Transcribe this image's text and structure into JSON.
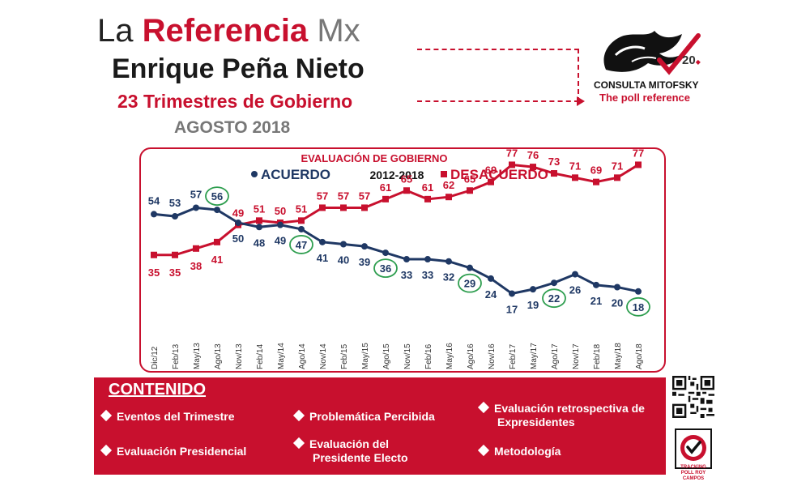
{
  "header": {
    "brand_la": "La",
    "brand_ref": "Referencia",
    "brand_mx": "Mx",
    "headline": "Enrique Peña Nieto",
    "subheadline": "23 Trimestres de Gobierno",
    "date": "AGOSTO 2018"
  },
  "logo": {
    "name": "CONSULTA MITOFSKY",
    "tagline": "The poll reference",
    "years": "20"
  },
  "colors": {
    "acuerdo": "#1f3864",
    "desacuerdo": "#c8102e",
    "highlight": "#2e9e4f"
  },
  "chart_data": {
    "type": "line",
    "title": "EVALUACIÓN DE GOBIERNO",
    "period": "2012-2018",
    "categories": [
      "Dic/12",
      "Feb/13",
      "May/13",
      "Ago/13",
      "Nov/13",
      "Feb/14",
      "May/14",
      "Ago/14",
      "Nov/14",
      "Feb/15",
      "May/15",
      "Ago/15",
      "Nov/15",
      "Feb/16",
      "May/16",
      "Ago/16",
      "Nov/16",
      "Feb/17",
      "May/17",
      "Ago/17",
      "Nov/17",
      "Feb/18",
      "May/18",
      "Ago/18"
    ],
    "series": [
      {
        "name": "ACUERDO",
        "values": [
          54,
          53,
          57,
          56,
          50,
          48,
          49,
          47,
          41,
          40,
          39,
          36,
          33,
          33,
          32,
          29,
          24,
          17,
          19,
          22,
          26,
          21,
          20,
          18
        ],
        "highlighted": [
          3,
          7,
          11,
          15,
          19,
          23
        ]
      },
      {
        "name": "DESACUERDO",
        "values": [
          35,
          35,
          38,
          41,
          49,
          51,
          50,
          51,
          57,
          57,
          57,
          61,
          65,
          61,
          62,
          65,
          69,
          77,
          76,
          73,
          71,
          69,
          71,
          77
        ]
      }
    ],
    "ylim": [
      10,
      85
    ],
    "legend": "top-center"
  },
  "contenido": {
    "title": "CONTENIDO",
    "items": [
      "Eventos del Trimestre",
      "Problemática Percibida",
      "Evaluación retrospectiva de Expresidentes",
      "Evaluación Presidencial",
      "Evaluación del Presidente Electo",
      "Metodología"
    ]
  },
  "badge": {
    "label": "TRACKING POLL ROY CAMPOS"
  }
}
